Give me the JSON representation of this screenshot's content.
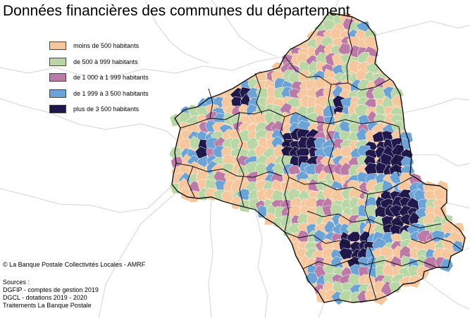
{
  "title": "Données financières des communes du département",
  "legend": {
    "items": [
      {
        "label": "moins de 500 habitants",
        "color": "#f6c79c"
      },
      {
        "label": "de 500 à 999 habitants",
        "color": "#b9d7a4"
      },
      {
        "label": "de 1 000 à 1 999 habitants",
        "color": "#bb7ba6"
      },
      {
        "label": "de 1 999 à 3 500 habitants",
        "color": "#6ba3d6"
      },
      {
        "label": "plus de 3 500 habitants",
        "color": "#20174b"
      }
    ]
  },
  "copyright": "© La Banque Postale Collectivités Locales - AMRF",
  "sources": {
    "heading": "Sources :",
    "lines": [
      "DGFIP - comptes de gestion 2019",
      "DGCL - dotations 2019 - 2020",
      "Traitements La Banque Postale"
    ]
  },
  "colors": {
    "background": "#ffffff",
    "neighbor_borders": "#d4d4d4",
    "canton_borders": "#111111",
    "commune_borders": "#ffffff"
  }
}
